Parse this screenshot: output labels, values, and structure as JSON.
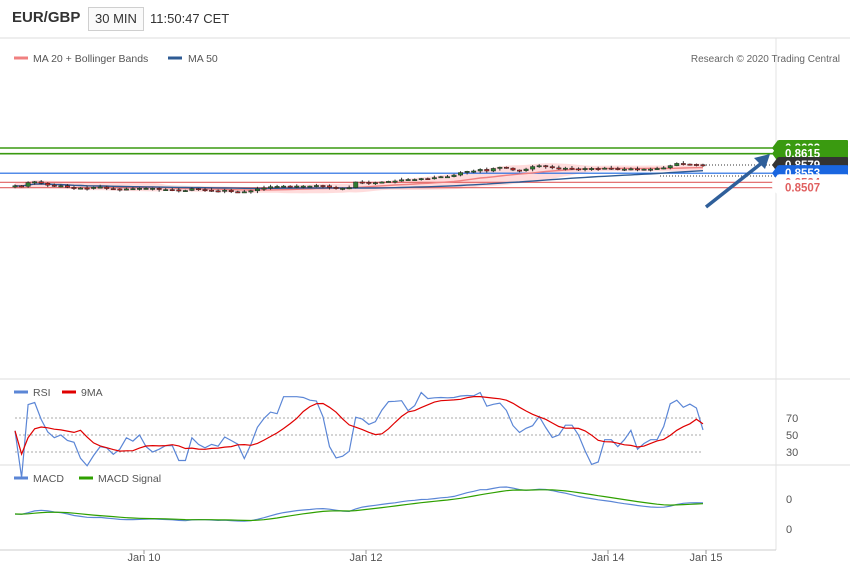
{
  "header": {
    "symbol": "EUR/GBP",
    "timeframe": "30 MIN",
    "time": "11:50:47 CET"
  },
  "main_legend": [
    {
      "label": "MA 20 + Bollinger Bands",
      "color": "#f08080"
    },
    {
      "label": "MA 50",
      "color": "#2e5b94"
    }
  ],
  "copyright": "Research © 2020 Trading Central",
  "levels": [
    {
      "value": "0.8633",
      "color": "#3a9a10"
    },
    {
      "value": "0.8615",
      "color": "#3a9a10"
    },
    {
      "value": "0.8579",
      "color": "#333333"
    },
    {
      "value": "0.8553",
      "color": "#1a66e0"
    },
    {
      "value": "0.8524",
      "color": "#e06060"
    },
    {
      "value": "0.8507",
      "color": "#e06060"
    }
  ],
  "rsi_legend": [
    {
      "label": "RSI",
      "color": "#5b86d6"
    },
    {
      "label": "9MA",
      "color": "#e00000"
    }
  ],
  "rsi_ticks": [
    "70",
    "50",
    "30"
  ],
  "macd_legend": [
    {
      "label": "MACD",
      "color": "#5b86d6"
    },
    {
      "label": "MACD Signal",
      "color": "#2fa000"
    }
  ],
  "macd_ticks": [
    "0",
    "0"
  ],
  "x_labels": [
    "Jan 10",
    "Jan 12",
    "Jan 14",
    "Jan 15"
  ],
  "colors": {
    "bull": "#2e7d32",
    "bear": "#c62828",
    "band": "#ffd6d6",
    "ma20": "#f08080",
    "ma50": "#2e5b94",
    "arrow": "#2f5f9a"
  },
  "chart_data": {
    "type": "candlestick",
    "instrument": "EUR/GBP",
    "timeframe": "30 MIN",
    "x_axis_labels": [
      "Jan 10",
      "Jan 12",
      "Jan 14",
      "Jan 15"
    ],
    "close_series": [
      0.8513,
      0.8511,
      0.8523,
      0.8526,
      0.8521,
      0.8515,
      0.8511,
      0.8513,
      0.8508,
      0.8504,
      0.8506,
      0.8505,
      0.8508,
      0.8509,
      0.8504,
      0.8503,
      0.8502,
      0.8503,
      0.8504,
      0.8505,
      0.8505,
      0.8505,
      0.8501,
      0.8501,
      0.85,
      0.8497,
      0.8498,
      0.8504,
      0.8501,
      0.8499,
      0.8497,
      0.8496,
      0.8499,
      0.8494,
      0.8493,
      0.8494,
      0.8497,
      0.8503,
      0.8506,
      0.851,
      0.8511,
      0.8512,
      0.8511,
      0.8512,
      0.8512,
      0.8512,
      0.8514,
      0.8513,
      0.8508,
      0.8505,
      0.8505,
      0.8507,
      0.8525,
      0.8524,
      0.8522,
      0.8523,
      0.8525,
      0.8527,
      0.8528,
      0.8532,
      0.8533,
      0.8533,
      0.8536,
      0.8535,
      0.8539,
      0.8542,
      0.8542,
      0.8547,
      0.8555,
      0.8559,
      0.856,
      0.8565,
      0.856,
      0.8568,
      0.8572,
      0.8569,
      0.8563,
      0.8561,
      0.8566,
      0.8574,
      0.8577,
      0.8574,
      0.857,
      0.8569,
      0.8569,
      0.8567,
      0.8566,
      0.8568,
      0.8568,
      0.8567,
      0.8569,
      0.8568,
      0.8566,
      0.8566,
      0.8567,
      0.8565,
      0.8566,
      0.8566,
      0.8568,
      0.857,
      0.8577,
      0.8584,
      0.8582,
      0.8581,
      0.858,
      0.8579
    ],
    "ma20_last": 0.8575,
    "ma50_last": 0.8565,
    "levels": [
      0.8633,
      0.8615,
      0.8579,
      0.8553,
      0.8524,
      0.8507
    ],
    "forecast_target": 0.8633,
    "rsi": {
      "ticks": [
        70,
        50,
        30
      ],
      "last": 56,
      "ma9_last": 63
    },
    "macd": {
      "ticks": [
        0,
        0
      ]
    }
  }
}
